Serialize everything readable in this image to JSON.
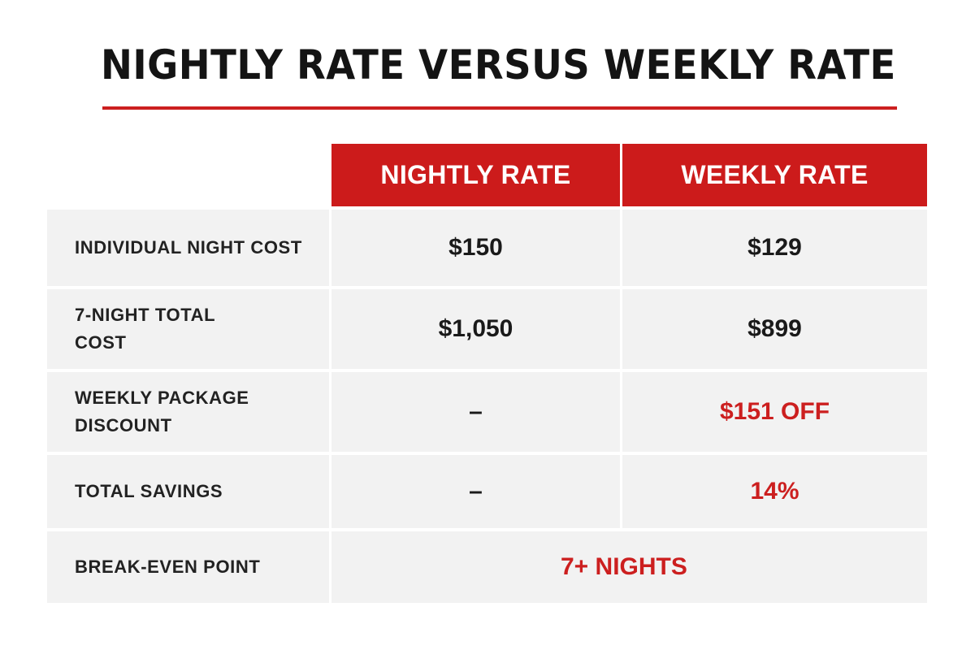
{
  "title": "NIGHTLY RATE VERSUS WEEKLY RATE",
  "colors": {
    "accent_red": "#cc1f1f",
    "header_red": "#cc1b1b",
    "row_background": "#f2f2f2",
    "text_dark": "#1a1a1a"
  },
  "chart_data": {
    "type": "table",
    "columns": [
      "NIGHTLY RATE",
      "WEEKLY RATE"
    ],
    "rows": [
      {
        "label": "INDIVIDUAL NIGHT COST",
        "nightly": "$150",
        "weekly": "$129",
        "weekly_highlight": false
      },
      {
        "label": "7-NIGHT TOTAL COST",
        "nightly": "$1,050",
        "weekly": "$899",
        "weekly_highlight": false
      },
      {
        "label": "WEEKLY PACKAGE DISCOUNT",
        "nightly": "–",
        "weekly": "$151 OFF",
        "weekly_highlight": true
      },
      {
        "label": "TOTAL SAVINGS",
        "nightly": "–",
        "weekly": "14%",
        "weekly_highlight": true
      },
      {
        "label": "BREAK-EVEN POINT",
        "merged_value": "7+ NIGHTS",
        "merged_highlight": true
      }
    ]
  }
}
